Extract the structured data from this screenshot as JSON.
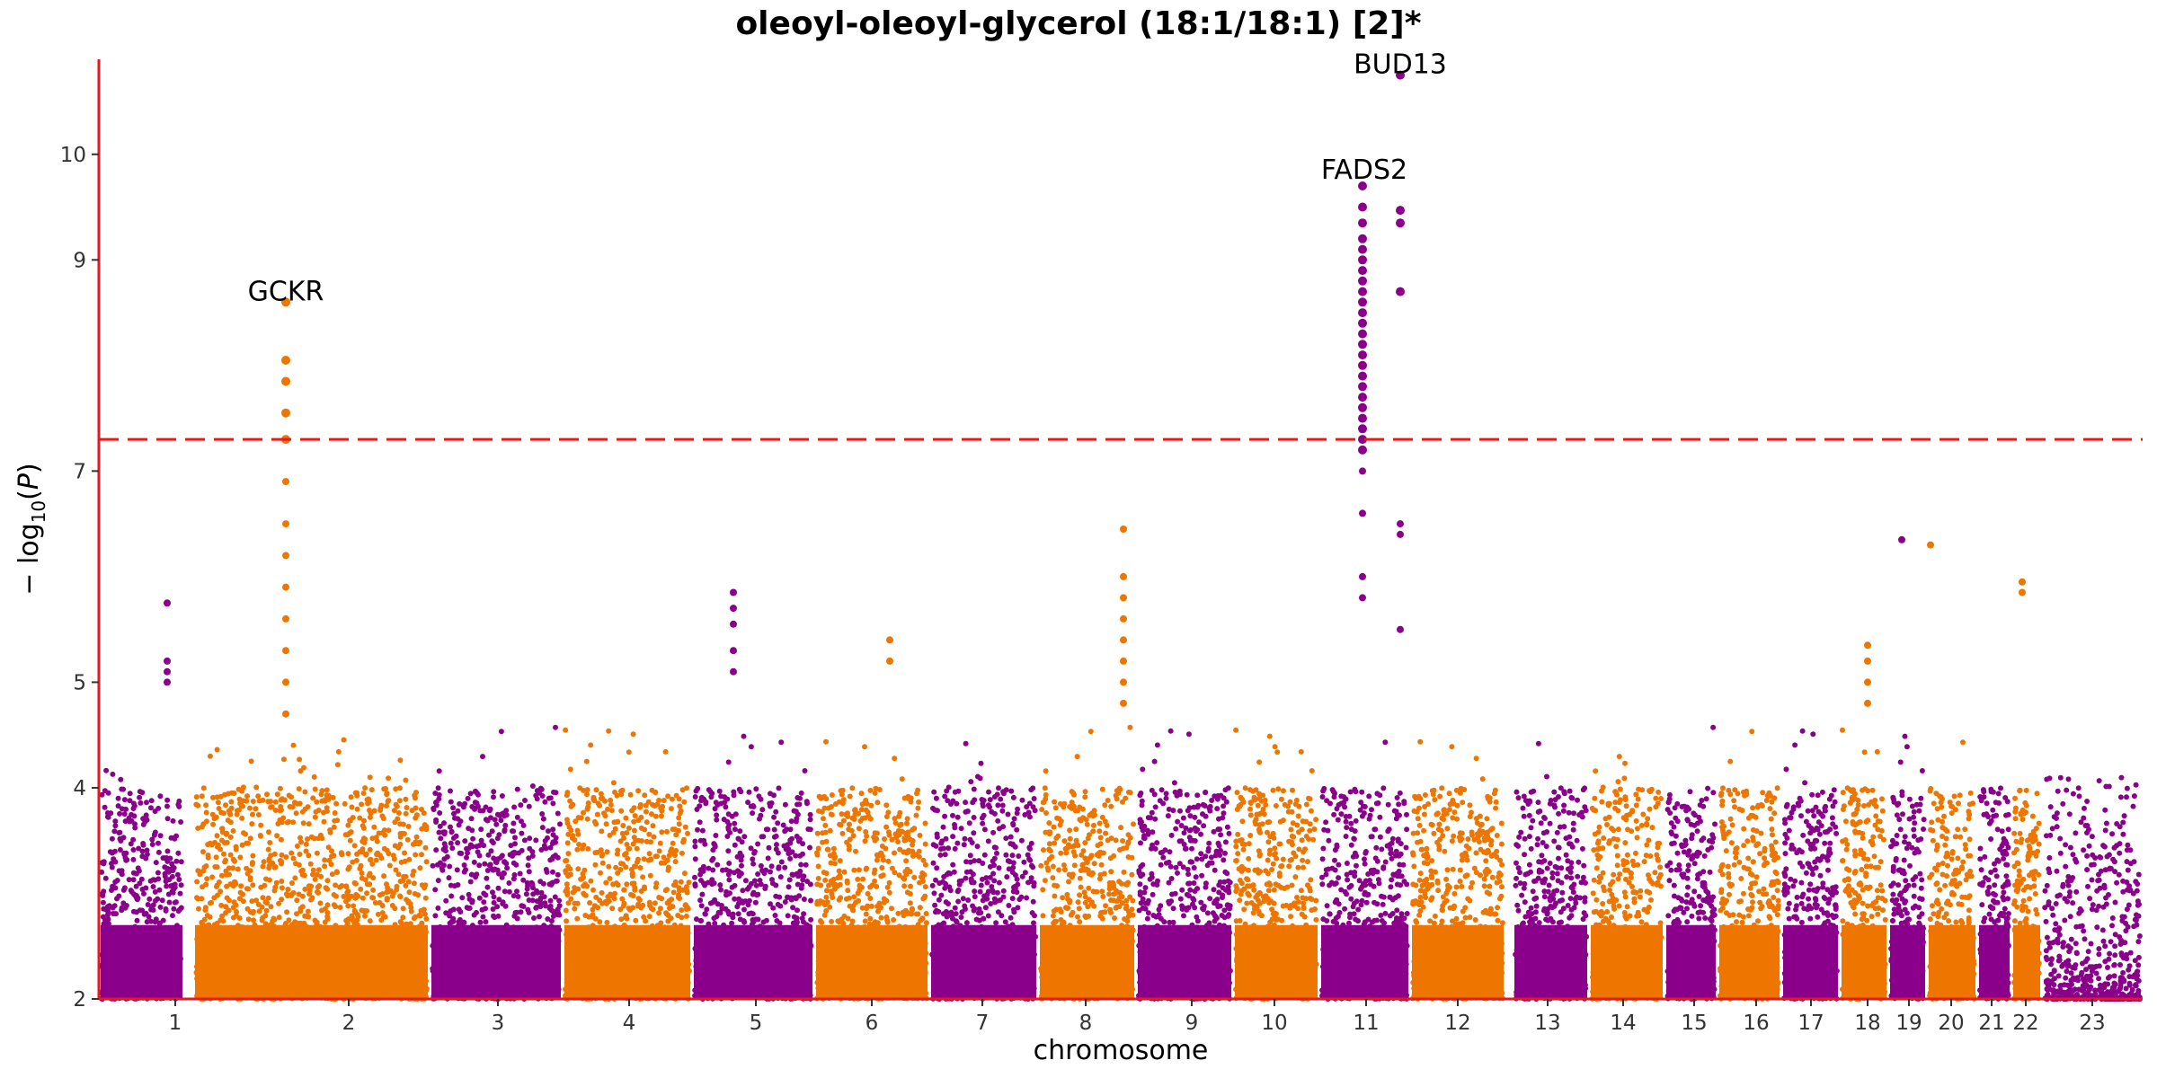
{
  "chart_data": {
    "type": "scatter",
    "title": "oleoyl-oleoyl-glycerol (18:1/18:1) [2]*",
    "xlabel": "chromosome",
    "ylabel": "-log10(P)",
    "ylim": [
      2,
      10.9
    ],
    "yticks": [
      2,
      4,
      5,
      7,
      9,
      10
    ],
    "significance_threshold": 7.3,
    "colors": {
      "odd": "#8B008B",
      "even": "#EE7600",
      "threshold": "#E41A1C",
      "axis": "#E41A1C"
    },
    "grid": false,
    "chromosomes": [
      {
        "chr": "1",
        "color": "odd"
      },
      {
        "chr": "2",
        "color": "even"
      },
      {
        "chr": "3",
        "color": "odd"
      },
      {
        "chr": "4",
        "color": "even"
      },
      {
        "chr": "5",
        "color": "odd"
      },
      {
        "chr": "6",
        "color": "even"
      },
      {
        "chr": "7",
        "color": "odd"
      },
      {
        "chr": "8",
        "color": "even"
      },
      {
        "chr": "9",
        "color": "odd"
      },
      {
        "chr": "10",
        "color": "even"
      },
      {
        "chr": "11",
        "color": "odd"
      },
      {
        "chr": "12",
        "color": "even"
      },
      {
        "chr": "13",
        "color": "odd"
      },
      {
        "chr": "14",
        "color": "even"
      },
      {
        "chr": "15",
        "color": "odd"
      },
      {
        "chr": "16",
        "color": "even"
      },
      {
        "chr": "17",
        "color": "odd"
      },
      {
        "chr": "18",
        "color": "even"
      },
      {
        "chr": "19",
        "color": "odd"
      },
      {
        "chr": "20",
        "color": "even"
      },
      {
        "chr": "21",
        "color": "odd"
      },
      {
        "chr": "22",
        "color": "even"
      },
      {
        "chr": "23",
        "color": "odd"
      }
    ],
    "annotations": [
      {
        "label": "GCKR",
        "chr": "2",
        "value": 8.6
      },
      {
        "label": "FADS2",
        "chr": "11",
        "value": 9.75
      },
      {
        "label": "BUD13",
        "chr": "11",
        "value": 10.75
      }
    ],
    "peaks": [
      {
        "chr": "1",
        "values": [
          5.75,
          5.2,
          5.1,
          5.0
        ]
      },
      {
        "chr": "2",
        "values": [
          8.6,
          8.05,
          7.85,
          7.55,
          7.3,
          6.9,
          6.5,
          6.2,
          5.9,
          5.6,
          5.3,
          5.0,
          4.7
        ]
      },
      {
        "chr": "5",
        "values": [
          5.85,
          5.7,
          5.55,
          5.3,
          5.1
        ]
      },
      {
        "chr": "6",
        "values": [
          5.4,
          5.2
        ]
      },
      {
        "chr": "8",
        "values": [
          6.45,
          6.0,
          5.8,
          5.6,
          5.4,
          5.2,
          5.0,
          4.8
        ]
      },
      {
        "chr": "11",
        "values": [
          9.7,
          9.5,
          9.35,
          9.2,
          9.1,
          9.0,
          8.9,
          8.8,
          8.7,
          8.6,
          8.5,
          8.4,
          8.3,
          8.2,
          8.1,
          8.0,
          7.9,
          7.8,
          7.7,
          7.6,
          7.5,
          7.4,
          7.3,
          7.2,
          7.0,
          6.6,
          6.0,
          5.8
        ]
      },
      {
        "chr": "11b",
        "values": [
          10.75,
          9.47,
          9.35,
          8.7,
          6.5,
          6.4,
          5.5
        ]
      },
      {
        "chr": "18",
        "values": [
          5.35,
          5.2,
          5.0,
          4.8
        ]
      },
      {
        "chr": "19",
        "values": [
          6.35
        ]
      },
      {
        "chr": "20",
        "values": [
          6.3
        ]
      },
      {
        "chr": "22",
        "values": [
          5.95,
          5.85
        ]
      }
    ]
  }
}
